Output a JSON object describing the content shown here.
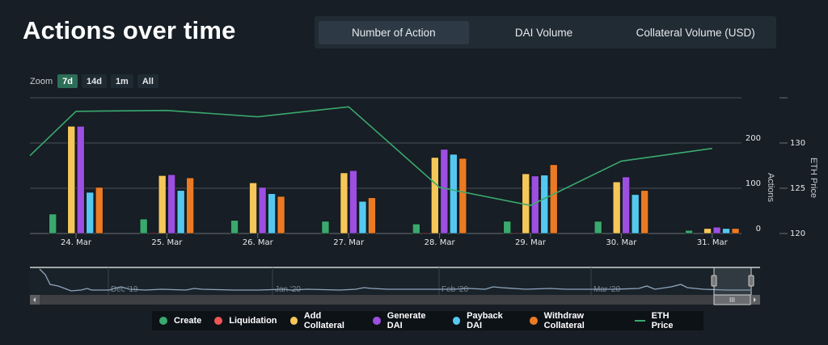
{
  "page": {
    "title": "Actions over time",
    "tabs": [
      {
        "label": "Number of Action",
        "active": true
      },
      {
        "label": "DAI Volume",
        "active": false
      },
      {
        "label": "Collateral Volume (USD)",
        "active": false
      }
    ],
    "zoom": {
      "label": "Zoom",
      "buttons": [
        {
          "label": "7d",
          "active": true
        },
        {
          "label": "14d",
          "active": false
        },
        {
          "label": "1m",
          "active": false
        },
        {
          "label": "All",
          "active": false
        }
      ]
    },
    "navigator": {
      "labels": [
        "Dec '19",
        "Jan '20",
        "Feb '20",
        "Mar '20"
      ],
      "scroll_handle_label": "III"
    }
  },
  "chart_data": {
    "type": "bar",
    "title": "Actions over time",
    "categories": [
      "24. Mar",
      "25. Mar",
      "26. Mar",
      "27. Mar",
      "28. Mar",
      "29. Mar",
      "30. Mar",
      "31. Mar"
    ],
    "series": [
      {
        "name": "Create",
        "color": "#3aa96e",
        "values": [
          43,
          32,
          29,
          27,
          21,
          27,
          27,
          7
        ]
      },
      {
        "name": "Liquidation",
        "color": "#f05656",
        "values": [
          0,
          1,
          0,
          0,
          1,
          1,
          0,
          0
        ]
      },
      {
        "name": "Add Collateral",
        "color": "#f5c75a",
        "values": [
          237,
          128,
          112,
          134,
          168,
          132,
          114,
          11
        ]
      },
      {
        "name": "Generate DAI",
        "color": "#9c4fe0",
        "values": [
          237,
          130,
          102,
          139,
          186,
          127,
          125,
          14
        ]
      },
      {
        "name": "Payback DAI",
        "color": "#55c8f0",
        "values": [
          91,
          95,
          88,
          71,
          175,
          129,
          86,
          11
        ]
      },
      {
        "name": "Withdraw Collateral",
        "color": "#ea7a24",
        "values": [
          102,
          123,
          82,
          79,
          166,
          152,
          95,
          11
        ]
      }
    ],
    "line_series": {
      "name": "ETH Price",
      "color": "#3aa96e",
      "start_value": 128.6,
      "values": [
        133.5,
        133.6,
        132.9,
        134.0,
        125.1,
        123.1,
        128.0,
        129.4
      ]
    },
    "y_axis_left": {
      "label": "Actions",
      "ticks": [
        0,
        100,
        200
      ],
      "range": [
        0,
        300
      ]
    },
    "y_axis_right": {
      "label": "ETH Price",
      "ticks": [
        120,
        125,
        130
      ],
      "range": [
        120,
        135
      ]
    },
    "xlabel": "",
    "grid": true,
    "legend": {
      "placement": "bottom",
      "items": [
        "Create",
        "Liquidation",
        "Add Collateral",
        "Generate DAI",
        "Payback DAI",
        "Withdraw Collateral",
        "ETH Price"
      ]
    }
  }
}
